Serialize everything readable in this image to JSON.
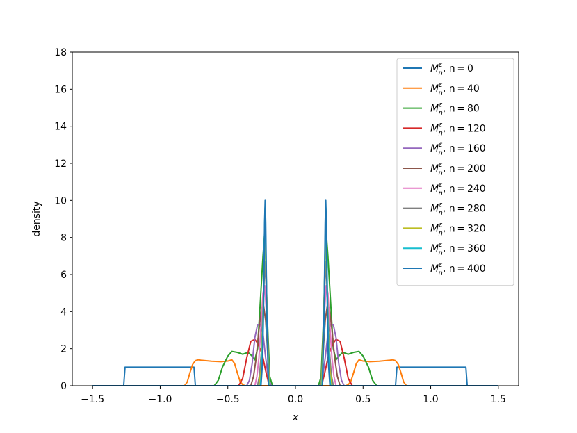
{
  "chart_data": {
    "type": "line",
    "xlabel": "x",
    "ylabel": "density",
    "xlim": [
      -1.65,
      1.65
    ],
    "ylim": [
      0,
      18
    ],
    "xticks": [
      -1.5,
      -1.0,
      -0.5,
      0.0,
      0.5,
      1.0,
      1.5
    ],
    "xtick_labels": [
      "−1.5",
      "−1.0",
      "−0.5",
      "0.0",
      "0.5",
      "1.0",
      "1.5"
    ],
    "yticks": [
      0,
      2,
      4,
      6,
      8,
      10,
      12,
      14,
      16,
      18
    ],
    "ytick_labels": [
      "0",
      "2",
      "4",
      "6",
      "8",
      "10",
      "12",
      "14",
      "16",
      "18"
    ],
    "grid": false,
    "legend_position": "top-right",
    "legend_prefix": "M",
    "legend_sub": "n",
    "legend_sup": "ε",
    "legend_mid": ", n = ",
    "series": [
      {
        "name": "n = 0",
        "n": "0",
        "color": "#1f77b4",
        "x": [
          -1.5,
          -1.27,
          -1.26,
          -0.75,
          -0.74,
          0.74,
          0.75,
          1.26,
          1.27,
          1.5
        ],
        "y": [
          0,
          0,
          1.0,
          1.0,
          0,
          0,
          1.0,
          1.0,
          0,
          0
        ]
      },
      {
        "name": "n = 40",
        "n": "40",
        "color": "#ff7f0e",
        "x": [
          -1.5,
          -0.82,
          -0.8,
          -0.78,
          -0.76,
          -0.74,
          -0.72,
          -0.7,
          -0.62,
          -0.55,
          -0.5,
          -0.47,
          -0.45,
          -0.43,
          -0.41,
          -0.39,
          -0.37,
          0.37,
          0.39,
          0.41,
          0.43,
          0.45,
          0.47,
          0.5,
          0.55,
          0.62,
          0.7,
          0.72,
          0.74,
          0.76,
          0.78,
          0.8,
          0.82,
          1.5
        ],
        "y": [
          0,
          0,
          0.2,
          0.7,
          1.15,
          1.35,
          1.4,
          1.38,
          1.32,
          1.3,
          1.33,
          1.4,
          1.2,
          0.7,
          0.25,
          0.05,
          0,
          0,
          0.05,
          0.25,
          0.7,
          1.2,
          1.4,
          1.33,
          1.3,
          1.32,
          1.38,
          1.4,
          1.35,
          1.15,
          0.7,
          0.2,
          0,
          0
        ]
      },
      {
        "name": "n = 80",
        "n": "80",
        "color": "#2ca02c",
        "x": [
          -1.5,
          -0.6,
          -0.57,
          -0.54,
          -0.5,
          -0.47,
          -0.43,
          -0.39,
          -0.35,
          -0.32,
          -0.3,
          -0.28,
          -0.26,
          -0.24,
          -0.225,
          -0.21,
          -0.19,
          -0.17,
          0.17,
          0.19,
          0.21,
          0.225,
          0.24,
          0.26,
          0.28,
          0.3,
          0.32,
          0.35,
          0.39,
          0.43,
          0.47,
          0.5,
          0.54,
          0.57,
          0.6,
          1.5
        ],
        "y": [
          0,
          0,
          0.3,
          1.0,
          1.6,
          1.85,
          1.8,
          1.7,
          1.8,
          1.6,
          1.4,
          2.0,
          4.5,
          7.0,
          8.5,
          4.0,
          0.5,
          0,
          0,
          0.5,
          4.0,
          8.5,
          7.0,
          4.5,
          2.0,
          1.4,
          1.6,
          1.8,
          1.7,
          1.8,
          1.85,
          1.6,
          1.0,
          0.3,
          0,
          0
        ]
      },
      {
        "name": "n = 120",
        "n": "120",
        "color": "#d62728",
        "x": [
          -1.5,
          -0.42,
          -0.39,
          -0.36,
          -0.33,
          -0.3,
          -0.28,
          -0.26,
          -0.24,
          -0.22,
          -0.2,
          -0.18,
          0.18,
          0.2,
          0.22,
          0.24,
          0.26,
          0.28,
          0.3,
          0.33,
          0.36,
          0.39,
          0.42,
          1.5
        ],
        "y": [
          0,
          0,
          0.4,
          1.5,
          2.4,
          2.5,
          2.3,
          2.0,
          1.5,
          0.8,
          0.2,
          0,
          0,
          0.2,
          0.8,
          1.5,
          2.0,
          2.3,
          2.5,
          2.4,
          1.5,
          0.4,
          0,
          0
        ]
      },
      {
        "name": "n = 160",
        "n": "160",
        "color": "#9467bd",
        "x": [
          -1.5,
          -0.36,
          -0.34,
          -0.32,
          -0.3,
          -0.28,
          -0.26,
          -0.24,
          -0.22,
          -0.2,
          -0.18,
          0.18,
          0.2,
          0.22,
          0.24,
          0.26,
          0.28,
          0.3,
          0.32,
          0.34,
          0.36,
          1.5
        ],
        "y": [
          0,
          0,
          0.3,
          1.2,
          2.6,
          3.3,
          3.3,
          2.8,
          1.5,
          0.4,
          0,
          0,
          0.4,
          1.5,
          2.8,
          3.3,
          3.3,
          2.6,
          1.2,
          0.3,
          0,
          0
        ]
      },
      {
        "name": "n = 200",
        "n": "200",
        "color": "#8c564b",
        "x": [
          -1.5,
          -0.33,
          -0.31,
          -0.29,
          -0.27,
          -0.25,
          -0.235,
          -0.22,
          -0.205,
          -0.19,
          0.19,
          0.205,
          0.22,
          0.235,
          0.25,
          0.27,
          0.29,
          0.31,
          0.33,
          1.5
        ],
        "y": [
          0,
          0,
          0.5,
          1.5,
          3.0,
          4.2,
          4.3,
          3.5,
          1.8,
          0,
          0,
          1.8,
          3.5,
          4.3,
          4.2,
          3.0,
          1.5,
          0.5,
          0,
          0
        ]
      },
      {
        "name": "n = 240",
        "n": "240",
        "color": "#e377c2",
        "x": [
          -1.5,
          -0.3,
          -0.285,
          -0.27,
          -0.255,
          -0.24,
          -0.227,
          -0.215,
          -0.2,
          -0.19,
          0.19,
          0.2,
          0.215,
          0.227,
          0.24,
          0.255,
          0.27,
          0.285,
          0.3,
          1.5
        ],
        "y": [
          0,
          0,
          0.5,
          1.5,
          3.2,
          5.0,
          5.4,
          4.0,
          1.2,
          0,
          0,
          1.2,
          4.0,
          5.4,
          5.0,
          3.2,
          1.5,
          0.5,
          0,
          0
        ]
      },
      {
        "name": "n = 280",
        "n": "280",
        "color": "#7f7f7f",
        "x": [
          -1.5,
          -0.28,
          -0.265,
          -0.25,
          -0.238,
          -0.226,
          -0.214,
          -0.2,
          -0.19,
          0.19,
          0.2,
          0.214,
          0.226,
          0.238,
          0.25,
          0.265,
          0.28,
          1.5
        ],
        "y": [
          0,
          0,
          0.6,
          2.0,
          4.5,
          6.7,
          5.0,
          1.5,
          0,
          0,
          1.5,
          5.0,
          6.7,
          4.5,
          2.0,
          0.6,
          0,
          0
        ]
      },
      {
        "name": "n = 320",
        "n": "320",
        "color": "#bcbd22",
        "x": [
          -1.5,
          -0.27,
          -0.255,
          -0.242,
          -0.233,
          -0.225,
          -0.216,
          -0.205,
          -0.193,
          0.193,
          0.205,
          0.216,
          0.225,
          0.233,
          0.242,
          0.255,
          0.27,
          1.5
        ],
        "y": [
          0,
          0,
          0.8,
          3.0,
          6.0,
          8.4,
          6.0,
          2.0,
          0,
          0,
          2.0,
          6.0,
          8.4,
          6.0,
          3.0,
          0.8,
          0,
          0
        ]
      },
      {
        "name": "n = 360",
        "n": "360",
        "color": "#17becf",
        "x": [
          -1.5,
          -0.26,
          -0.248,
          -0.238,
          -0.231,
          -0.225,
          -0.219,
          -0.21,
          -0.197,
          0.197,
          0.21,
          0.219,
          0.225,
          0.231,
          0.238,
          0.248,
          0.26,
          1.5
        ],
        "y": [
          0,
          0,
          1.0,
          4.0,
          7.5,
          9.6,
          7.5,
          3.0,
          0,
          0,
          3.0,
          7.5,
          9.6,
          7.5,
          4.0,
          1.0,
          0,
          0
        ]
      },
      {
        "name": "n = 400",
        "n": "400",
        "color": "#1f77b4",
        "x": [
          -1.5,
          -0.255,
          -0.243,
          -0.234,
          -0.228,
          -0.224,
          -0.22,
          -0.212,
          -0.2,
          0.2,
          0.212,
          0.22,
          0.224,
          0.228,
          0.234,
          0.243,
          0.255,
          1.5
        ],
        "y": [
          0,
          0,
          1.3,
          5.0,
          8.8,
          10.0,
          8.8,
          4.0,
          0,
          0,
          4.0,
          8.8,
          10.0,
          8.8,
          5.0,
          1.3,
          0,
          0
        ]
      }
    ]
  }
}
